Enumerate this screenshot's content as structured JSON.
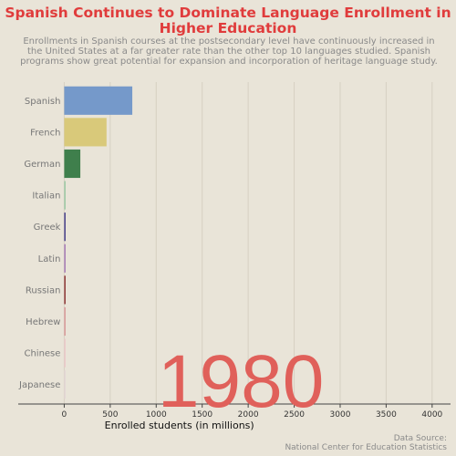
{
  "chart_data": {
    "type": "bar",
    "orientation": "horizontal",
    "title": "Spanish Continues to Dominate Language Enrollment in Higher Education",
    "subtitle": "Enrollments in Spanish courses at the postsecondary level have continuously increased in the United States at a far greater rate than the other top 10 languages studied. Spanish programs show great potential for expansion and incorporation of heritage language study.",
    "xlabel": "Enrolled students (in millions)",
    "ylabel": "",
    "xlim": [
      -500,
      4200
    ],
    "xticks": [
      0,
      500,
      1000,
      1500,
      2000,
      2500,
      3000,
      3500,
      4000
    ],
    "grid": true,
    "categories": [
      "Spanish",
      "French",
      "German",
      "Italian",
      "Greek",
      "Latin",
      "Russian",
      "Hebrew",
      "Chinese",
      "Japanese"
    ],
    "values": [
      740,
      460,
      175,
      15,
      12,
      10,
      8,
      6,
      4,
      3
    ],
    "colors": [
      "#7599ca",
      "#d9c97a",
      "#3f7f4c",
      "#9ccaa5",
      "#463f8a",
      "#a67bb6",
      "#8e3535",
      "#d99a9a",
      "#ecc8c8",
      "#e4d6d6"
    ],
    "annotation": "1980",
    "source_lines": [
      "Data Source:",
      "National Center for Education Statistics"
    ]
  }
}
